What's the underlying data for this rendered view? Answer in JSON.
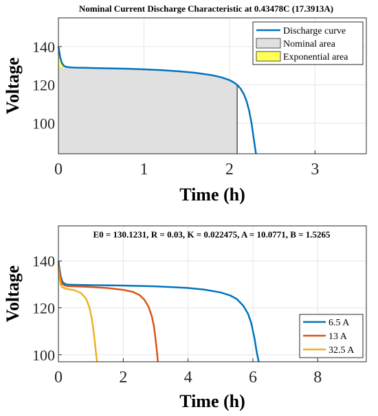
{
  "chart_data": [
    {
      "type": "area",
      "title": "Nominal Current Discharge Characteristic at 0.43478C (17.3913A)",
      "xlabel": "Time (h)",
      "ylabel": "Voltage",
      "xlim": [
        0,
        3.6
      ],
      "ylim": [
        84,
        155
      ],
      "xticks": [
        "0",
        "1",
        "2",
        "3"
      ],
      "xtick_values": [
        0,
        1,
        2,
        3
      ],
      "yticks": [
        "100",
        "120",
        "140"
      ],
      "ytick_values": [
        100,
        120,
        140
      ],
      "grid": true,
      "legend_position": "top-right",
      "legend": [
        {
          "label": "Discharge curve",
          "kind": "line",
          "color": "#0072BD"
        },
        {
          "label": "Nominal area",
          "kind": "patch",
          "color": "#E0E0E0"
        },
        {
          "label": "Exponential area",
          "kind": "patch",
          "color": "#FFFF55"
        }
      ],
      "series": [
        {
          "name": "Discharge curve",
          "color": "#0072BD",
          "x": [
            0,
            0.01,
            0.02,
            0.04,
            0.06,
            0.08,
            0.1,
            0.15,
            0.2,
            0.3,
            0.5,
            0.8,
            1.0,
            1.2,
            1.4,
            1.6,
            1.8,
            1.9,
            2.0,
            2.05,
            2.09,
            2.13,
            2.17,
            2.2,
            2.23,
            2.26,
            2.28,
            2.3,
            2.31
          ],
          "y": [
            140,
            137.5,
            134.5,
            131.5,
            130.1,
            129.6,
            129.3,
            129.1,
            129.0,
            128.9,
            128.7,
            128.4,
            128.1,
            127.7,
            127.1,
            126.3,
            125.0,
            124.0,
            122.5,
            121.3,
            120.0,
            118.0,
            115.0,
            111.5,
            106.5,
            99.5,
            93.0,
            87.0,
            84.0
          ]
        }
      ],
      "nominal_area": {
        "x_start": 0,
        "x_end": 2.09,
        "voltage_at_end": 120,
        "color": "#E0E0E0"
      },
      "exponential_area": {
        "x_start": 0,
        "x_end": 0.1,
        "voltage_at_end": 129.3,
        "color": "#FFFF55"
      }
    },
    {
      "type": "line",
      "title": "E0 = 130.1231, R = 0.03, K = 0.022475, A = 10.0771, B = 1.5265",
      "xlabel": "Time (h)",
      "ylabel": "Voltage",
      "xlim": [
        0,
        9.5
      ],
      "ylim": [
        97,
        155
      ],
      "xticks": [
        "0",
        "2",
        "4",
        "6",
        "8"
      ],
      "xtick_values": [
        0,
        2,
        4,
        6,
        8
      ],
      "yticks": [
        "100",
        "120",
        "140"
      ],
      "ytick_values": [
        100,
        120,
        140
      ],
      "grid": true,
      "legend_position": "bottom-right",
      "series": [
        {
          "name": "6.5 A",
          "color": "#0072BD",
          "x": [
            0,
            0.03,
            0.07,
            0.12,
            0.2,
            0.3,
            0.5,
            1.0,
            2.0,
            3.0,
            4.0,
            4.5,
            5.0,
            5.3,
            5.5,
            5.7,
            5.85,
            5.95,
            6.05,
            6.12,
            6.18
          ],
          "y": [
            140,
            137,
            133.5,
            131.2,
            130.2,
            129.9,
            129.8,
            129.7,
            129.5,
            129.2,
            128.5,
            127.8,
            126.6,
            125.3,
            123.8,
            121.0,
            117.5,
            113.5,
            107.0,
            101.0,
            97.0
          ]
        },
        {
          "name": "13 A",
          "color": "#D95319",
          "x": [
            0,
            0.03,
            0.07,
            0.12,
            0.2,
            0.3,
            0.5,
            1.0,
            1.5,
            2.0,
            2.3,
            2.5,
            2.65,
            2.78,
            2.88,
            2.95,
            3.02,
            3.07
          ],
          "y": [
            139,
            135.5,
            132,
            130.2,
            129.5,
            129.3,
            129.2,
            128.9,
            128.5,
            127.7,
            126.8,
            125.5,
            123.5,
            120.5,
            116.5,
            112.0,
            104.0,
            97.0
          ]
        },
        {
          "name": "32.5 A",
          "color": "#EDB120",
          "x": [
            0,
            0.03,
            0.07,
            0.12,
            0.2,
            0.3,
            0.5,
            0.7,
            0.85,
            0.95,
            1.03,
            1.1,
            1.15,
            1.19
          ],
          "y": [
            137,
            133,
            130,
            128.8,
            128.3,
            128.0,
            127.5,
            126.3,
            124.0,
            120.5,
            115.5,
            108.5,
            102.0,
            97.0
          ]
        }
      ]
    }
  ]
}
